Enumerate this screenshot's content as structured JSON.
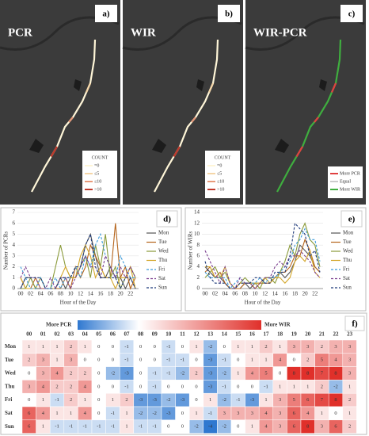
{
  "maps": [
    {
      "title": "PCR",
      "label": "a)",
      "legend_title": "COUNT",
      "legend": [
        "=0",
        "≤5",
        "≤10",
        ">10"
      ],
      "colors": [
        "#fff6d8",
        "#f5d6a8",
        "#e89a7a",
        "#c0392b"
      ]
    },
    {
      "title": "WIR",
      "label": "b)",
      "legend_title": "COUNT",
      "legend": [
        "=0",
        "≤5",
        "≤10",
        ">10"
      ],
      "colors": [
        "#fff6d8",
        "#f5d6a8",
        "#e89a7a",
        "#c0392b"
      ]
    },
    {
      "title": "WIR-PCR",
      "label": "c)",
      "legend": [
        "More PCR",
        "Equal",
        "More WIR"
      ],
      "colors": [
        "#e04040",
        "#cccccc",
        "#3fae3f"
      ]
    }
  ],
  "chart_data": [
    {
      "type": "line",
      "label": "d)",
      "xlabel": "Hour of the Day",
      "ylabel": "Number of PCRs",
      "categories": [
        "00",
        null,
        "02",
        null,
        "04",
        null,
        "06",
        null,
        "08",
        null,
        "10",
        null,
        "12",
        null,
        "14",
        null,
        "16",
        null,
        "18",
        null,
        "20",
        null,
        "22",
        null
      ],
      "ylim": [
        0,
        7
      ],
      "yticks": [
        0,
        1,
        2,
        3,
        4,
        5,
        6,
        7
      ],
      "grid": true,
      "series": [
        {
          "name": "Mon",
          "color": "#555555",
          "dashed": false,
          "values": [
            0,
            1,
            1,
            0,
            0,
            0,
            0,
            0,
            1,
            0,
            1,
            1,
            2,
            4,
            5,
            3,
            1,
            1,
            2,
            1,
            1,
            0,
            1,
            0
          ]
        },
        {
          "name": "Tue",
          "color": "#b5651d",
          "dashed": false,
          "values": [
            1,
            0,
            0,
            1,
            0,
            0,
            0,
            0,
            0,
            1,
            0,
            2,
            1,
            2,
            4,
            3,
            2,
            1,
            1,
            6,
            1,
            2,
            0,
            1
          ]
        },
        {
          "name": "Wed",
          "color": "#8a9a3a",
          "dashed": false,
          "values": [
            0,
            0,
            1,
            0,
            1,
            0,
            0,
            2,
            4,
            2,
            1,
            1,
            2,
            3,
            1,
            4,
            2,
            5,
            1,
            2,
            0,
            1,
            2,
            1
          ]
        },
        {
          "name": "Thu",
          "color": "#d4a72c",
          "dashed": false,
          "values": [
            1,
            0,
            0,
            0,
            1,
            0,
            0,
            0,
            1,
            2,
            1,
            1,
            3,
            4,
            3,
            1,
            2,
            1,
            1,
            0,
            1,
            1,
            2,
            0
          ]
        },
        {
          "name": "Fri",
          "color": "#3a9ad9",
          "dashed": true,
          "values": [
            2,
            1,
            0,
            0,
            1,
            0,
            0,
            1,
            0,
            1,
            1,
            2,
            1,
            3,
            2,
            4,
            5,
            3,
            2,
            1,
            3,
            2,
            1,
            1
          ]
        },
        {
          "name": "Sat",
          "color": "#7b3f8f",
          "dashed": true,
          "values": [
            1,
            2,
            1,
            1,
            0,
            0,
            1,
            0,
            1,
            1,
            0,
            1,
            2,
            3,
            2,
            2,
            1,
            3,
            2,
            1,
            2,
            1,
            2,
            1
          ]
        },
        {
          "name": "Sun",
          "color": "#1f3a7a",
          "dashed": true,
          "values": [
            0,
            1,
            1,
            1,
            1,
            0,
            0,
            0,
            1,
            1,
            1,
            2,
            2,
            4,
            5,
            2,
            1,
            1,
            1,
            1,
            0,
            1,
            1,
            0
          ]
        }
      ]
    },
    {
      "type": "line",
      "label": "e)",
      "xlabel": "Hour of the Day",
      "ylabel": "Number of WIRs",
      "categories": [
        "00",
        null,
        "02",
        null,
        "04",
        null,
        "06",
        null,
        "08",
        null,
        "10",
        null,
        "12",
        null,
        "14",
        null,
        "16",
        null,
        "18",
        null,
        "20",
        null,
        "22",
        null
      ],
      "ylim": [
        0,
        14
      ],
      "yticks": [
        0,
        2,
        4,
        6,
        8,
        10,
        12,
        14
      ],
      "grid": true,
      "series": [
        {
          "name": "Mon",
          "color": "#555555",
          "dashed": false,
          "values": [
            4,
            3,
            2,
            2,
            1,
            0,
            0,
            0,
            1,
            0,
            1,
            1,
            2,
            2,
            2,
            3,
            2,
            3,
            5,
            8,
            7,
            6,
            4,
            3
          ]
        },
        {
          "name": "Tue",
          "color": "#b5651d",
          "dashed": false,
          "values": [
            3,
            4,
            2,
            3,
            1,
            0,
            0,
            0,
            1,
            1,
            0,
            1,
            1,
            1,
            2,
            3,
            3,
            4,
            6,
            6,
            9,
            7,
            4,
            3
          ]
        },
        {
          "name": "Wed",
          "color": "#8a9a3a",
          "dashed": false,
          "values": [
            2,
            3,
            4,
            2,
            3,
            1,
            0,
            1,
            2,
            1,
            1,
            0,
            2,
            2,
            1,
            3,
            5,
            8,
            6,
            10,
            12,
            9,
            8,
            4
          ]
        },
        {
          "name": "Thu",
          "color": "#d4a72c",
          "dashed": false,
          "values": [
            4,
            4,
            2,
            2,
            4,
            1,
            0,
            1,
            1,
            1,
            1,
            1,
            2,
            1,
            2,
            2,
            1,
            2,
            5,
            6,
            5,
            7,
            3,
            2
          ]
        },
        {
          "name": "Fri",
          "color": "#3a9ad9",
          "dashed": true,
          "values": [
            3,
            2,
            2,
            2,
            2,
            0,
            1,
            2,
            1,
            1,
            1,
            2,
            1,
            2,
            2,
            3,
            4,
            5,
            8,
            9,
            11,
            9,
            9,
            5
          ]
        },
        {
          "name": "Sat",
          "color": "#7b3f8f",
          "dashed": true,
          "values": [
            7,
            5,
            3,
            1,
            4,
            1,
            0,
            2,
            1,
            1,
            0,
            1,
            2,
            2,
            4,
            5,
            4,
            6,
            6,
            7,
            6,
            5,
            3,
            2
          ]
        },
        {
          "name": "Sun",
          "color": "#1f3a7a",
          "dashed": true,
          "values": [
            5,
            2,
            1,
            1,
            1,
            0,
            0,
            1,
            1,
            1,
            2,
            2,
            1,
            1,
            3,
            3,
            3,
            6,
            12,
            11,
            10,
            6,
            7,
            3
          ]
        }
      ]
    },
    {
      "type": "heatmap",
      "label": "f)",
      "legend_left": "More PCR",
      "legend_right": "More WIR",
      "x": [
        "00",
        "01",
        "02",
        "03",
        "04",
        "05",
        "06",
        "07",
        "08",
        "09",
        "10",
        "11",
        "12",
        "13",
        "14",
        "15",
        "16",
        "17",
        "18",
        "19",
        "20",
        "21",
        "22",
        "23"
      ],
      "y": [
        "Mon",
        "Tue",
        "Wed",
        "Thu",
        "Fri",
        "Sat",
        "Sun"
      ],
      "zlim": [
        -4,
        8
      ],
      "colors": {
        "min": "#2f78d0",
        "mid": "#ffffff",
        "max": "#e0302a"
      },
      "values": [
        [
          1,
          1,
          1,
          2,
          1,
          0,
          0,
          -1,
          0,
          0,
          -1,
          0,
          1,
          -2,
          0,
          1,
          1,
          2,
          1,
          3,
          3,
          2,
          3,
          3
        ],
        [
          2,
          3,
          1,
          3,
          0,
          0,
          0,
          -1,
          0,
          0,
          -1,
          -1,
          0,
          -3,
          -1,
          0,
          1,
          1,
          4,
          0,
          2,
          5,
          4,
          3
        ],
        [
          0,
          3,
          4,
          2,
          2,
          0,
          -2,
          -3,
          0,
          -1,
          -1,
          -2,
          2,
          -3,
          -2,
          1,
          4,
          5,
          0,
          8,
          8,
          7,
          8,
          3
        ],
        [
          3,
          4,
          2,
          2,
          4,
          0,
          0,
          -1,
          0,
          -1,
          0,
          0,
          0,
          -3,
          -1,
          0,
          0,
          -1,
          1,
          1,
          1,
          2,
          -2,
          1
        ],
        [
          0,
          1,
          -1,
          2,
          1,
          0,
          1,
          2,
          -3,
          -3,
          -2,
          -3,
          0,
          1,
          -2,
          -1,
          -3,
          1,
          3,
          5,
          6,
          7,
          8,
          2
        ],
        [
          6,
          4,
          1,
          1,
          4,
          0,
          -1,
          1,
          -2,
          -2,
          -3,
          0,
          1,
          -1,
          3,
          3,
          3,
          4,
          3,
          6,
          4,
          1,
          0,
          1
        ],
        [
          6,
          1,
          -1,
          -1,
          -1,
          -1,
          -1,
          1,
          -1,
          -1,
          0,
          0,
          -2,
          -4,
          -2,
          0,
          1,
          4,
          3,
          6,
          8,
          3,
          6,
          2
        ]
      ]
    }
  ]
}
